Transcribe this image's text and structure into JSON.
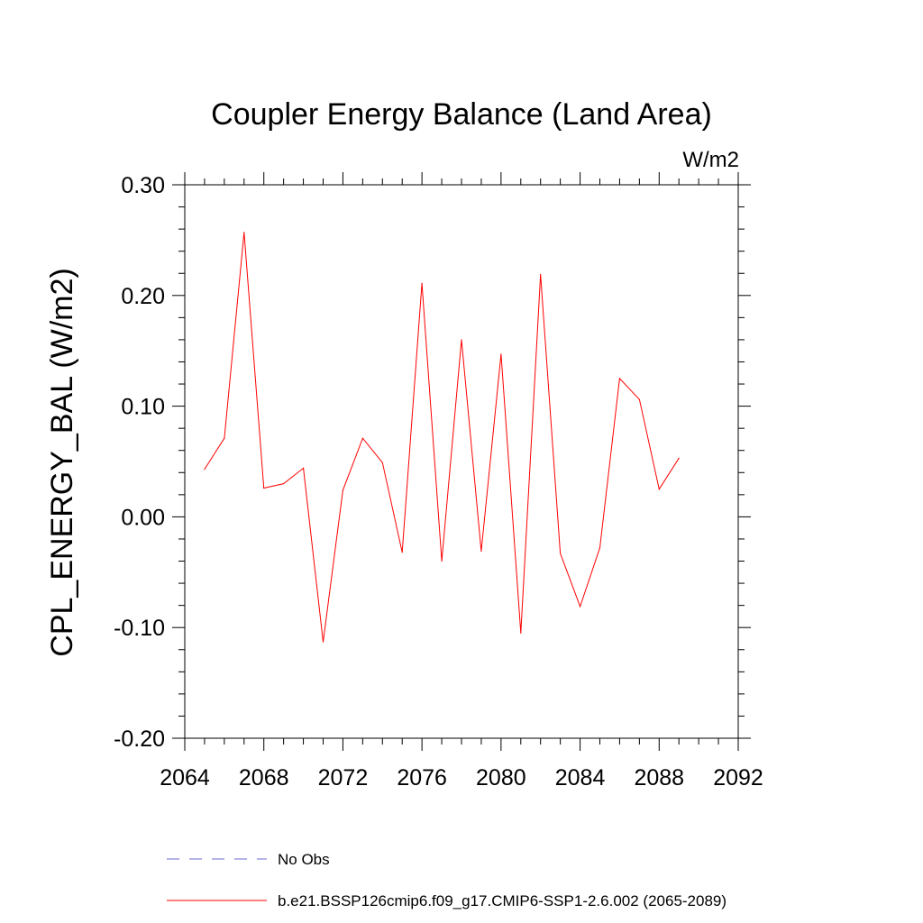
{
  "chart_data": {
    "type": "line",
    "title": "Coupler Energy Balance (Land Area)",
    "units_label": "W/m2",
    "xlabel": "",
    "ylabel": "CPL_ENERGY_BAL  (W/m2)",
    "xlim": [
      2064,
      2092
    ],
    "ylim": [
      -0.2,
      0.3
    ],
    "x_ticks": [
      2064,
      2068,
      2072,
      2076,
      2080,
      2084,
      2088,
      2092
    ],
    "x_tick_labels": [
      "2064",
      "2068",
      "2072",
      "2076",
      "2080",
      "2084",
      "2088",
      "2092"
    ],
    "y_ticks": [
      -0.2,
      -0.1,
      0.0,
      0.1,
      0.2,
      0.3
    ],
    "y_tick_labels": [
      "-0.20",
      "-0.10",
      "0.00",
      "0.10",
      "0.20",
      "0.30"
    ],
    "grid": false,
    "legend_position": "bottom",
    "series": [
      {
        "name": "b.e21.BSSP126cmip6.f09_g17.CMIP6-SSP1-2.6.002 (2065-2089)",
        "color": "#ff0000",
        "dash": false,
        "x": [
          2065,
          2066,
          2067,
          2068,
          2069,
          2070,
          2071,
          2072,
          2073,
          2074,
          2075,
          2076,
          2077,
          2078,
          2079,
          2080,
          2081,
          2082,
          2083,
          2084,
          2085,
          2086,
          2087,
          2088,
          2089
        ],
        "values": [
          0.043,
          0.071,
          0.257,
          0.026,
          0.03,
          0.044,
          -0.113,
          0.024,
          0.071,
          0.049,
          -0.032,
          0.211,
          -0.04,
          0.16,
          -0.031,
          0.147,
          -0.105,
          0.219,
          -0.033,
          -0.081,
          -0.028,
          0.125,
          0.106,
          0.025,
          0.053
        ]
      }
    ],
    "legend": [
      {
        "label": "No Obs",
        "color": "#6a6ad0",
        "dash": true
      },
      {
        "label": "b.e21.BSSP126cmip6.f09_g17.CMIP6-SSP1-2.6.002 (2065-2089)",
        "color": "#ff0000",
        "dash": false
      }
    ]
  }
}
